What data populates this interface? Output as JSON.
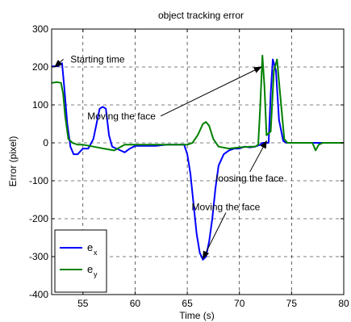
{
  "chart_data": {
    "type": "line",
    "title": "object tracking error",
    "xlabel": "Time (s)",
    "ylabel": "Error (pixel)",
    "xlim": [
      52,
      80
    ],
    "ylim": [
      -400,
      300
    ],
    "xticks": [
      55,
      60,
      65,
      70,
      75,
      80
    ],
    "yticks": [
      -400,
      -300,
      -200,
      -100,
      0,
      100,
      200,
      300
    ],
    "grid": true,
    "grid_style": "dashed",
    "legend_position": "bottom-left",
    "series": [
      {
        "name": "e_x",
        "legend_base": "e",
        "legend_sub": "x",
        "color": "#0000ff",
        "x": [
          52.0,
          52.6,
          53.0,
          53.2,
          53.5,
          53.8,
          54.1,
          54.5,
          55.0,
          55.5,
          56.0,
          56.3,
          56.6,
          56.9,
          57.2,
          57.5,
          57.8,
          58.2,
          58.6,
          59.0,
          59.5,
          60.0,
          61.0,
          62.0,
          63.0,
          64.0,
          64.7,
          65.0,
          65.3,
          65.6,
          65.9,
          66.2,
          66.5,
          66.8,
          67.1,
          67.4,
          67.7,
          68.0,
          68.5,
          69.0,
          69.5,
          70.0,
          70.5,
          71.0,
          71.5,
          72.0,
          72.2,
          72.5,
          72.8,
          73.0,
          73.2,
          73.5,
          73.8,
          74.2,
          74.5,
          75.0,
          76.0,
          77.0,
          78.0,
          80.0
        ],
        "y": [
          202,
          202,
          210,
          150,
          50,
          -10,
          -30,
          -30,
          -15,
          -15,
          10,
          50,
          90,
          95,
          90,
          20,
          -10,
          -15,
          -20,
          -25,
          -15,
          -8,
          -8,
          -8,
          -5,
          -5,
          -5,
          -30,
          -80,
          -160,
          -240,
          -290,
          -308,
          -300,
          -260,
          -200,
          -120,
          -60,
          -30,
          -20,
          -15,
          -15,
          -10,
          -12,
          -10,
          -5,
          0,
          0,
          0,
          130,
          220,
          190,
          60,
          5,
          0,
          0,
          0,
          0,
          0,
          0
        ]
      },
      {
        "name": "e_y",
        "legend_base": "e",
        "legend_sub": "y",
        "color": "#008000",
        "x": [
          52.0,
          52.5,
          52.9,
          53.1,
          53.3,
          53.6,
          54.0,
          54.5,
          55.0,
          56.0,
          57.0,
          58.0,
          59.0,
          60.0,
          61.0,
          62.0,
          63.0,
          64.0,
          65.0,
          65.5,
          66.0,
          66.5,
          66.8,
          67.1,
          67.5,
          68.0,
          69.0,
          70.0,
          71.0,
          71.5,
          71.8,
          72.0,
          72.2,
          72.4,
          72.6,
          73.0,
          73.3,
          73.6,
          74.0,
          74.3,
          74.6,
          75.0,
          77.0,
          77.3,
          77.6,
          78.0,
          80.0
        ],
        "y": [
          158,
          160,
          158,
          130,
          70,
          10,
          0,
          -5,
          -5,
          -10,
          -15,
          -20,
          -5,
          -5,
          -5,
          -5,
          -5,
          -5,
          -5,
          0,
          20,
          50,
          55,
          45,
          10,
          -10,
          -15,
          -12,
          -10,
          -10,
          -5,
          100,
          230,
          150,
          20,
          30,
          190,
          220,
          100,
          10,
          0,
          0,
          0,
          -20,
          -5,
          0,
          0
        ]
      }
    ],
    "annotations": [
      {
        "text": "Starting time",
        "text_x": 56.4,
        "text_y": 212,
        "arrow_x": 52.3,
        "arrow_y": 200
      },
      {
        "text": "Moving the face",
        "text_x": 58.7,
        "text_y": 62,
        "arrow_x": 72.1,
        "arrow_y": 200
      },
      {
        "text": "loosing the face",
        "text_x": 71.0,
        "text_y": -102,
        "arrow_x": 72.6,
        "arrow_y": 5
      },
      {
        "text": "Moving the face",
        "text_x": 68.7,
        "text_y": -178,
        "arrow_x": 66.5,
        "arrow_y": -305
      }
    ]
  }
}
